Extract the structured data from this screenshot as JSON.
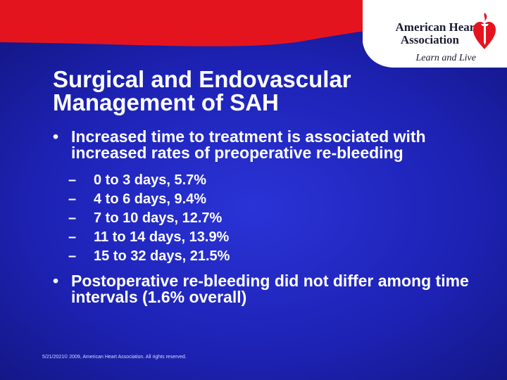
{
  "logo": {
    "org_line1": "American Heart",
    "org_line2": "Association",
    "tagline": "Learn and Live",
    "icon": "heart-torch-icon"
  },
  "title_lines": [
    "Surgical and Endovascular",
    "Management of SAH"
  ],
  "bullets": [
    {
      "marker": "•",
      "text": "Increased time to treatment is associated with increased rates of preoperative re-bleeding",
      "sub_marker": "–",
      "sub_items": [
        "0 to 3 days, 5.7%",
        "4 to 6 days, 9.4%",
        "7 to 10 days, 12.7%",
        "11 to 14 days, 13.9%",
        "15 to 32 days, 21.5%"
      ]
    },
    {
      "marker": "•",
      "text": "Postoperative re-bleeding did not differ among time intervals (1.6% overall)"
    }
  ],
  "footer": "5/21/2021© 2009, American Heart Association. All rights reserved.",
  "colors": {
    "background": "#1d22b4",
    "top_banner": "#e4141f",
    "text": "#ffffff"
  }
}
